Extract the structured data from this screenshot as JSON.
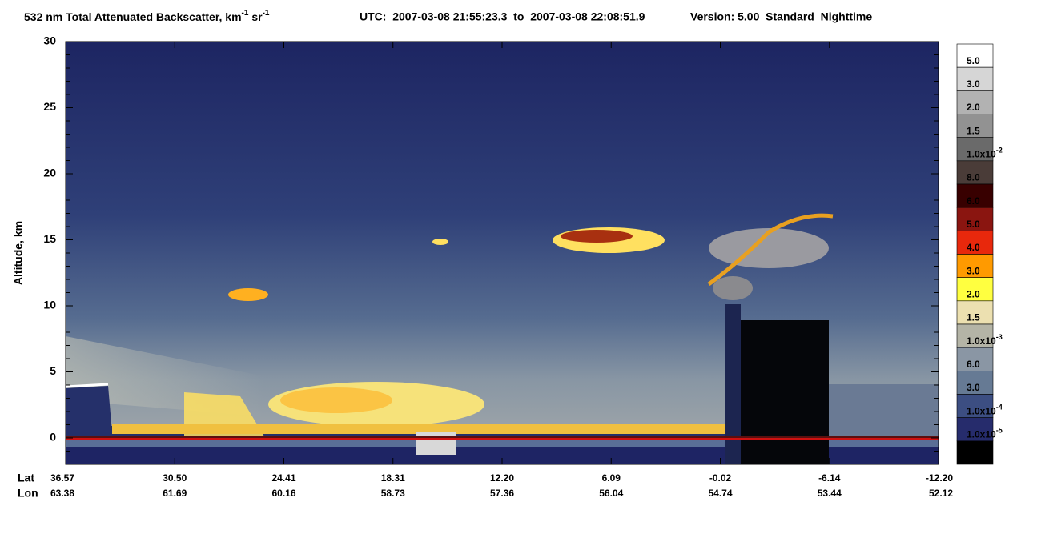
{
  "chart_data": {
    "type": "lidar-curtain",
    "title": [
      {
        "text": "532 nm Total Attenuated Backscatter, km"
      },
      {
        "sup": "-1"
      },
      {
        "text": " sr"
      },
      {
        "sup": "-1"
      }
    ],
    "utc": "UTC:  2007-03-08 21:55:23.3  to  2007-03-08 22:08:51.9",
    "version": "Version: 5.00  Standard  Nighttime",
    "y_label": "Altitude, km",
    "ylim": [
      -2,
      30
    ],
    "yticks": [
      0,
      5,
      10,
      15,
      20,
      25,
      30
    ],
    "yminorticks": [
      -1,
      1,
      2,
      3,
      4,
      6,
      7,
      8,
      9,
      11,
      12,
      13,
      14,
      16,
      17,
      18,
      19,
      21,
      22,
      23,
      24,
      26,
      27,
      28,
      29
    ],
    "x_row_labels": [
      "Lat",
      "Lon"
    ],
    "lat": [
      "36.57",
      "30.50",
      "24.41",
      "18.31",
      "12.20",
      "6.09",
      "-0.02",
      "-6.14",
      "-12.20"
    ],
    "lon": [
      "63.38",
      "61.69",
      "60.16",
      "58.73",
      "57.36",
      "56.04",
      "54.74",
      "53.44",
      "52.12"
    ],
    "colorbar": {
      "colors": [
        "#ffffff",
        "#d6d6d6",
        "#b2b2b2",
        "#929292",
        "#6a6a6a",
        "#4a3c38",
        "#380000",
        "#8a1510",
        "#e8280c",
        "#ff9a00",
        "#ffff40",
        "#ece0b0",
        "#b4b4a6",
        "#8a96a4",
        "#667a94",
        "#3c4e82",
        "#262c6c",
        "#000000"
      ],
      "labels": [
        {
          "text": "5.0"
        },
        {
          "text": "3.0"
        },
        {
          "text": "2.0"
        },
        {
          "text": "1.5"
        },
        {
          "text": "1.0x10",
          "sup": "-2"
        },
        {
          "text": "8.0"
        },
        {
          "text": "6.0"
        },
        {
          "text": "5.0"
        },
        {
          "text": "4.0"
        },
        {
          "text": "3.0"
        },
        {
          "text": "2.0"
        },
        {
          "text": "1.5"
        },
        {
          "text": "1.0x10",
          "sup": "-3"
        },
        {
          "text": "6.0"
        },
        {
          "text": "3.0"
        },
        {
          "text": "1.0x10",
          "sup": "-4"
        },
        {
          "text": "1.0x10",
          "sup": "-5"
        }
      ]
    }
  }
}
